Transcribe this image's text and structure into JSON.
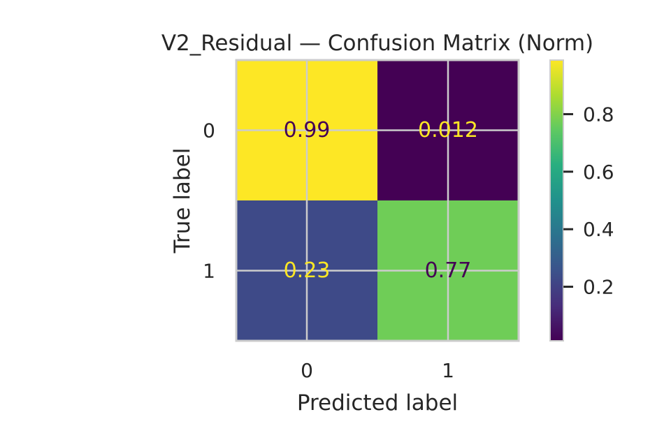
{
  "chart_data": {
    "type": "heatmap",
    "title": "V2_Residual — Confusion Matrix (Norm)",
    "xlabel": "Predicted label",
    "ylabel": "True label",
    "x_categories": [
      "0",
      "1"
    ],
    "y_categories": [
      "0",
      "1"
    ],
    "values": [
      [
        0.988,
        0.012
      ],
      [
        0.23,
        0.77
      ]
    ],
    "cell_labels": [
      [
        "0.99",
        "0.012"
      ],
      [
        "0.23",
        "0.77"
      ]
    ],
    "colormap": "viridis",
    "colorbar": {
      "range": [
        0.012,
        0.988
      ],
      "ticks": [
        0.2,
        0.4,
        0.6,
        0.8
      ],
      "tick_labels": [
        "0.2",
        "0.4",
        "0.6",
        "0.8"
      ]
    },
    "grid": true
  },
  "colors": {
    "text": "#262626",
    "grid": "#cccccc",
    "light_text": "#fde725",
    "dark_text": "#440154"
  }
}
